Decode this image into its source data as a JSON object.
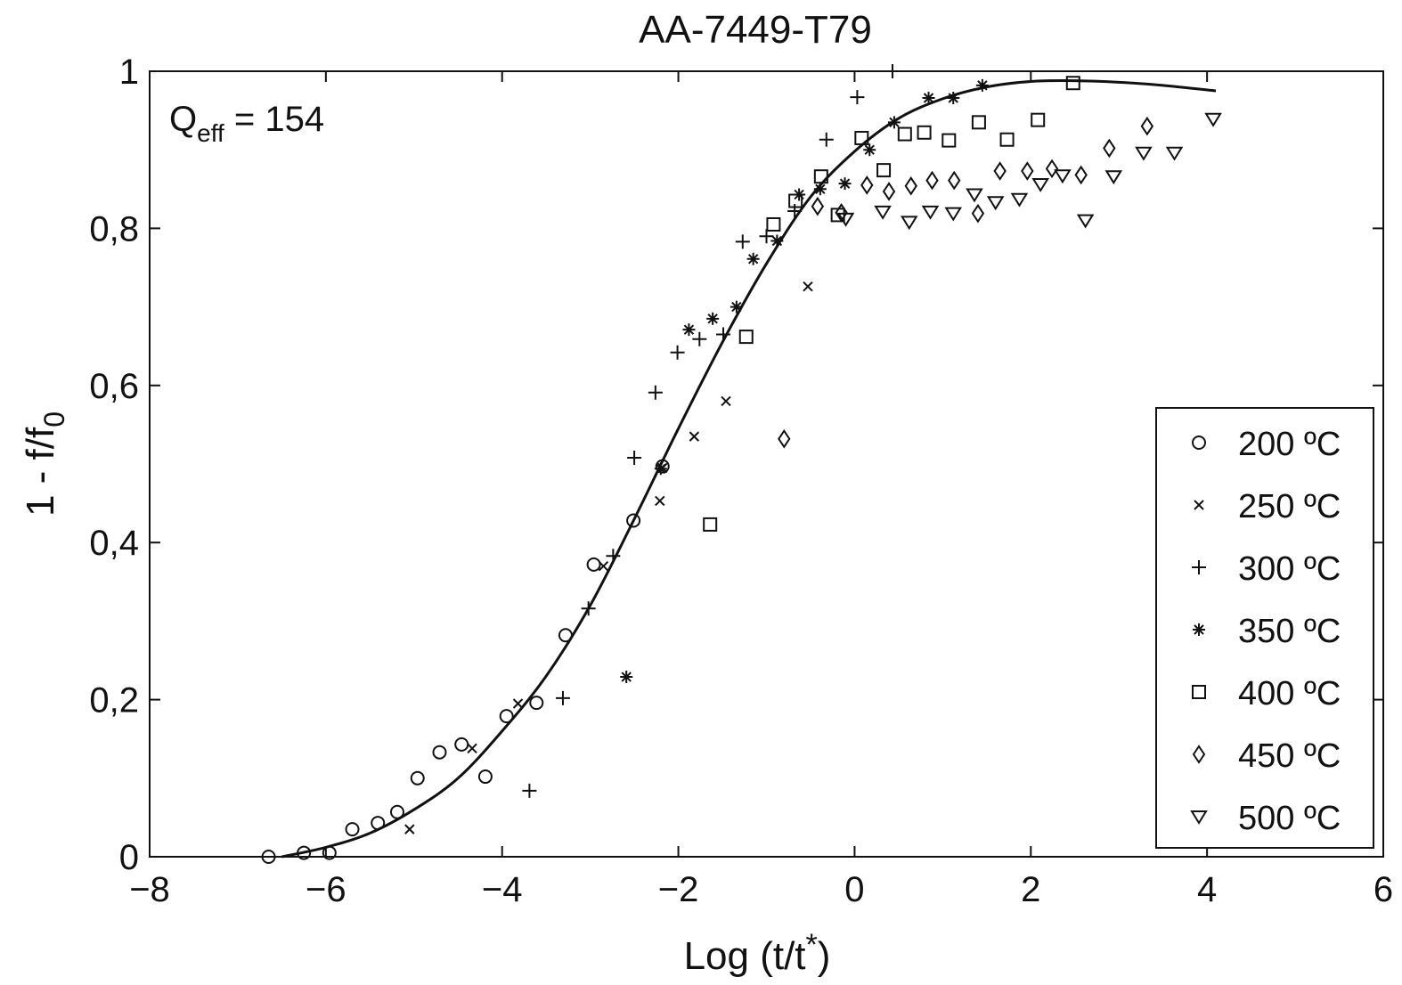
{
  "chart_data": {
    "type": "scatter",
    "title": "AA-7449-T79",
    "xlabel": "Log (t/t*)",
    "xlabel_main": "Log (t/t",
    "xlabel_sup": "*",
    "xlabel_close": ")",
    "ylabel": "1 - f/f0",
    "ylabel_main": "1 - f/f",
    "ylabel_sub": "0",
    "xlim": [
      -8,
      6
    ],
    "ylim": [
      0,
      1
    ],
    "xticks": [
      -8,
      -6,
      -4,
      -2,
      0,
      2,
      4,
      6
    ],
    "xtick_labels": [
      "−8",
      "−6",
      "−4",
      "−2",
      "0",
      "2",
      "4",
      "6"
    ],
    "yticks": [
      0,
      0.2,
      0.4,
      0.6,
      0.8,
      1
    ],
    "ytick_labels": [
      "0",
      "0,2",
      "0,4",
      "0,6",
      "0,8",
      "1"
    ],
    "grid": false,
    "legend_position": "lower-right",
    "annotation": {
      "main": "Q",
      "sub": "eff",
      "rest": " = 154"
    },
    "series": [
      {
        "name": "200 ºC",
        "marker": "circle",
        "x": [
          -6.65,
          -6.25,
          -5.96,
          -5.7,
          -5.41,
          -5.19,
          -4.96,
          -4.71,
          -4.46,
          -4.19,
          -3.95,
          -3.61,
          -3.28,
          -2.96,
          -2.51,
          -2.18
        ],
        "y": [
          0,
          0.005,
          0.005,
          0.035,
          0.043,
          0.057,
          0.1,
          0.133,
          0.143,
          0.102,
          0.179,
          0.196,
          0.282,
          0.372,
          0.428,
          0.497
        ]
      },
      {
        "name": "250 ºC",
        "marker": "x",
        "x": [
          -5.05,
          -4.34,
          -3.82,
          -2.85,
          -2.21,
          -2.18,
          -1.82,
          -1.46,
          -0.53
        ],
        "y": [
          0.035,
          0.138,
          0.195,
          0.37,
          0.453,
          0.495,
          0.535,
          0.58,
          0.726
        ]
      },
      {
        "name": "300 ºC",
        "marker": "plus",
        "x": [
          -3.69,
          -3.31,
          -3.02,
          -2.74,
          -2.5,
          -2.26,
          -2.01,
          -1.76,
          -1.49,
          -1.27,
          -1.0,
          -0.68,
          -0.32,
          0.03,
          0.43
        ],
        "y": [
          0.084,
          0.202,
          0.316,
          0.383,
          0.508,
          0.591,
          0.642,
          0.659,
          0.665,
          0.783,
          0.79,
          0.822,
          0.913,
          0.967,
          1.0
        ]
      },
      {
        "name": "350 ºC",
        "marker": "star",
        "x": [
          -2.59,
          -2.2,
          -1.88,
          -1.61,
          -1.34,
          -1.15,
          -0.88,
          -0.63,
          -0.39,
          -0.11,
          0.17,
          0.45,
          0.84,
          1.12,
          1.45
        ],
        "y": [
          0.229,
          0.494,
          0.671,
          0.685,
          0.7,
          0.761,
          0.784,
          0.843,
          0.85,
          0.857,
          0.9,
          0.935,
          0.966,
          0.966,
          0.982
        ]
      },
      {
        "name": "400 ºC",
        "marker": "square",
        "x": [
          -1.64,
          -1.23,
          -0.92,
          -0.67,
          -0.38,
          -0.19,
          0.08,
          0.33,
          0.57,
          0.79,
          1.07,
          1.41,
          1.73,
          2.08,
          2.48
        ],
        "y": [
          0.423,
          0.662,
          0.805,
          0.835,
          0.866,
          0.817,
          0.915,
          0.874,
          0.92,
          0.922,
          0.912,
          0.935,
          0.913,
          0.938,
          0.985
        ]
      },
      {
        "name": "450 ºC",
        "marker": "diamond",
        "x": [
          -0.8,
          -0.42,
          -0.15,
          0.14,
          0.39,
          0.64,
          0.88,
          1.13,
          1.4,
          1.65,
          1.96,
          2.24,
          2.57,
          2.89,
          3.32
        ],
        "y": [
          0.532,
          0.828,
          0.82,
          0.855,
          0.847,
          0.854,
          0.861,
          0.861,
          0.819,
          0.873,
          0.873,
          0.876,
          0.868,
          0.902,
          0.93
        ]
      },
      {
        "name": "500 ºC",
        "marker": "triangle-down",
        "x": [
          -0.1,
          0.32,
          0.62,
          0.86,
          1.12,
          1.36,
          1.6,
          1.87,
          2.11,
          2.36,
          2.62,
          2.94,
          3.28,
          3.63,
          4.07
        ],
        "y": [
          0.812,
          0.821,
          0.808,
          0.821,
          0.819,
          0.843,
          0.833,
          0.837,
          0.856,
          0.867,
          0.81,
          0.866,
          0.896,
          0.896,
          0.939
        ]
      }
    ],
    "fit_curve": {
      "x": [
        -6.5,
        -6,
        -5.5,
        -5,
        -4.5,
        -4,
        -3.5,
        -3,
        -2.5,
        -2,
        -1.5,
        -1,
        -0.5,
        0,
        0.5,
        1,
        1.5,
        2,
        2.5,
        3,
        3.5,
        4.1
      ],
      "y": [
        0,
        0.012,
        0.03,
        0.06,
        0.1,
        0.16,
        0.23,
        0.32,
        0.43,
        0.545,
        0.655,
        0.755,
        0.84,
        0.898,
        0.94,
        0.965,
        0.98,
        0.987,
        0.988,
        0.986,
        0.982,
        0.975
      ]
    }
  }
}
